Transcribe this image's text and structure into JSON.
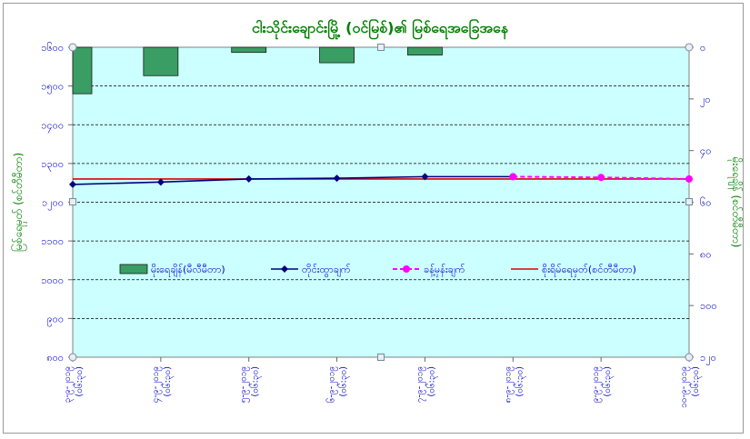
{
  "chart_data": {
    "type": "bar",
    "title": "ငါးသိုင်းချောင်းမြို့ (ဝင်မြစ်)၏ မြစ်ရေအခြေအနေ",
    "ylabel": "မြစ်ရေမှတ် (စင်တီမီတာ)",
    "y2label": "မိုးရေချိန် (စင်တီမီတာ)",
    "ylim": [
      800,
      1600
    ],
    "y2lim": [
      120,
      0
    ],
    "y2_inverted": true,
    "yticks": [
      "၈၀၀",
      "၉၀၀",
      "၁၀၀၀",
      "၁၁၀၀",
      "၁၂၀၀",
      "၁၃၀၀",
      "၁၄၀၀",
      "၁၅၀၀",
      "၁၆၀၀"
    ],
    "y2ticks": [
      "၀",
      "၂၀",
      "၄၀",
      "၆၀",
      "၈၀",
      "၁၀၀",
      "၁၂၀"
    ],
    "categories": [
      [
        "၃-၉-၂၀၁၉",
        "(၀၆:၃၀)"
      ],
      [
        "၄-၉-၂၀၁၉",
        "(၀၆:၃၀)"
      ],
      [
        "၅-၉-၂၀၁၉",
        "(၀၆:၃၀)"
      ],
      [
        "၆-၉-၂၀၁၉",
        "(၀၆:၃၀)"
      ],
      [
        "၇-၉-၂၀၁၉",
        "(၀၆:၃၀)"
      ],
      [
        "၈-၉-၂၀၁၉",
        "(၀၆:၃၀)"
      ],
      [
        "၉-၉-၂၀၁၉",
        "(၀၆:၃၀)"
      ],
      [
        "၁၀-၉-၂၀၁၉",
        "(၀၆:၃၀)"
      ]
    ],
    "series": [
      {
        "name": "မိုးရေချိန်(မီလီမီတာ)",
        "type": "bar",
        "axis": "right",
        "values": [
          18,
          11,
          2,
          6,
          3,
          null,
          null,
          null
        ]
      },
      {
        "name": "တိုင်းထွာချက်",
        "type": "line",
        "axis": "left",
        "values": [
          1246,
          1252,
          1260,
          1262,
          1266,
          1266,
          null,
          null
        ]
      },
      {
        "name": "ခန့်မှန်းချက်",
        "type": "line",
        "axis": "left",
        "style": "dashed",
        "values": [
          null,
          null,
          null,
          null,
          null,
          1266,
          1264,
          1260
        ]
      },
      {
        "name": "စိုးရိမ်ရေမှတ်(စင်တီမီတာ)",
        "type": "line",
        "axis": "left",
        "values": [
          1260,
          1260,
          1260,
          1260,
          1260,
          1260,
          1260,
          1260
        ]
      }
    ],
    "legend_position": "inside-bottom",
    "grid": true,
    "colors": {
      "plot_bg": "#ccffff",
      "bar": "#3a9e64",
      "observed": "#000080",
      "forecast": "#ff00ff",
      "danger": "#dd0000",
      "title": "#008000",
      "axis_text": "#0000cc"
    }
  }
}
